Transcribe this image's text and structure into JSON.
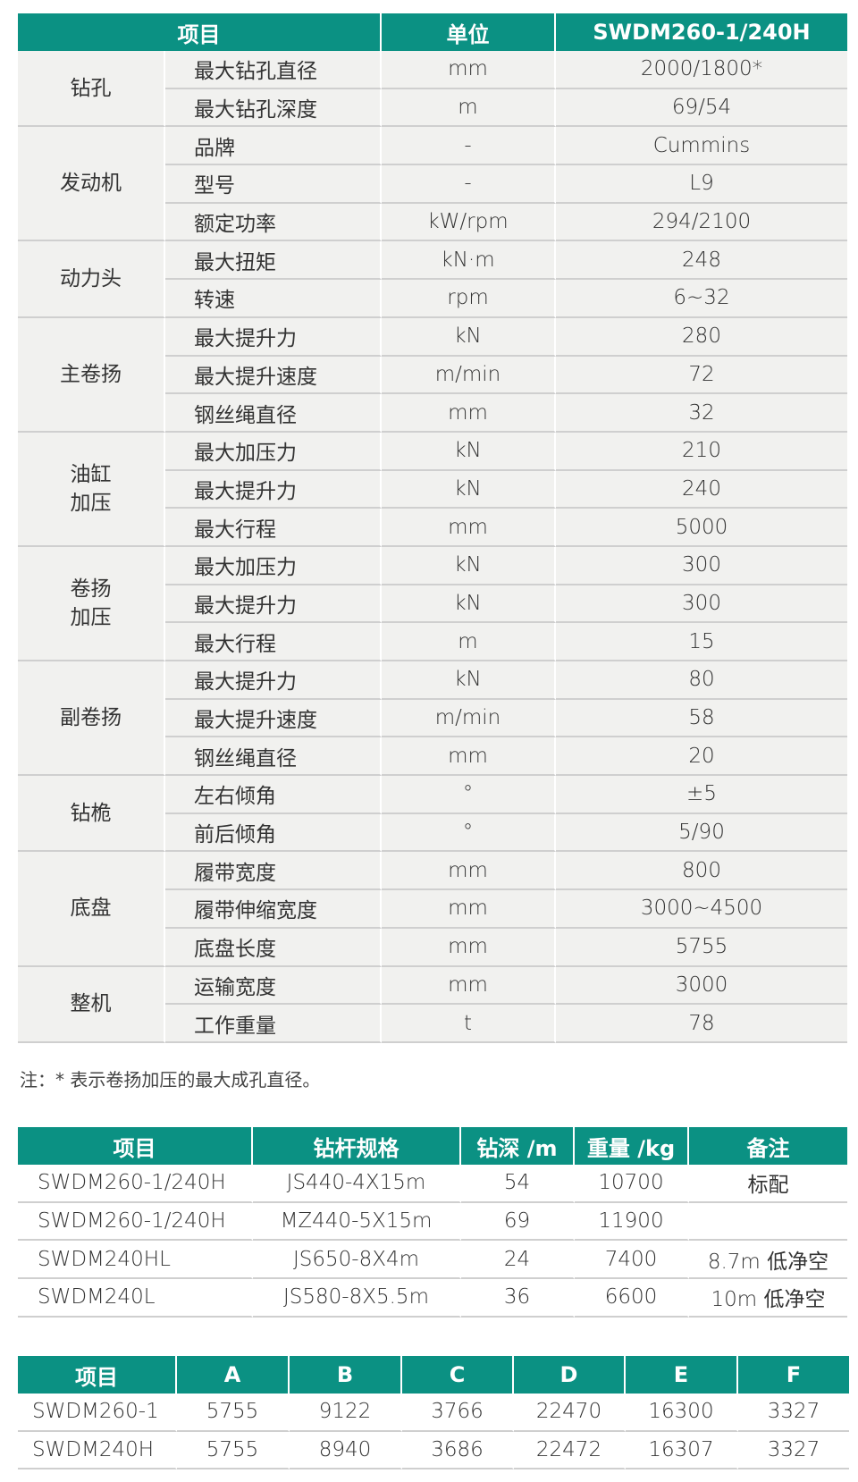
{
  "spec_table": {
    "headers": [
      "项目",
      "单位",
      "SWDM260-1/240H"
    ],
    "groups": [
      {
        "name": "钻孔",
        "rows": [
          [
            "最大钻孔直径",
            "mm",
            "2000/1800*"
          ],
          [
            "最大钻孔深度",
            "m",
            "69/54"
          ]
        ]
      },
      {
        "name": "发动机",
        "rows": [
          [
            "品牌",
            "-",
            "Cummins"
          ],
          [
            "型号",
            "-",
            "L9"
          ],
          [
            "额定功率",
            "kW/rpm",
            "294/2100"
          ]
        ]
      },
      {
        "name": "动力头",
        "rows": [
          [
            "最大扭矩",
            "kN·m",
            "248"
          ],
          [
            "转速",
            "rpm",
            "6~32"
          ]
        ]
      },
      {
        "name": "主卷扬",
        "rows": [
          [
            "最大提升力",
            "kN",
            "280"
          ],
          [
            "最大提升速度",
            "m/min",
            "72"
          ],
          [
            "钢丝绳直径",
            "mm",
            "32"
          ]
        ]
      },
      {
        "name": "油缸\n加压",
        "rows": [
          [
            "最大加压力",
            "kN",
            "210"
          ],
          [
            "最大提升力",
            "kN",
            "240"
          ],
          [
            "最大行程",
            "mm",
            "5000"
          ]
        ]
      },
      {
        "name": "卷扬\n加压",
        "rows": [
          [
            "最大加压力",
            "kN",
            "300"
          ],
          [
            "最大提升力",
            "kN",
            "300"
          ],
          [
            "最大行程",
            "m",
            "15"
          ]
        ]
      },
      {
        "name": "副卷扬",
        "rows": [
          [
            "最大提升力",
            "kN",
            "80"
          ],
          [
            "最大提升速度",
            "m/min",
            "58"
          ],
          [
            "钢丝绳直径",
            "mm",
            "20"
          ]
        ]
      },
      {
        "name": "钻桅",
        "rows": [
          [
            "左右倾角",
            "°",
            "±5"
          ],
          [
            "前后倾角",
            "°",
            "5/90"
          ]
        ]
      },
      {
        "name": "底盘",
        "rows": [
          [
            "履带宽度",
            "mm",
            "800"
          ],
          [
            "履带伸缩宽度",
            "mm",
            "3000~4500"
          ],
          [
            "底盘长度",
            "mm",
            "5755"
          ]
        ]
      },
      {
        "name": "整机",
        "rows": [
          [
            "运输宽度",
            "mm",
            "3000"
          ],
          [
            "工作重量",
            "t",
            "78"
          ]
        ]
      }
    ]
  },
  "note": "注：* 表示卷扬加压的最大成孔直径。",
  "rod_table": {
    "headers": [
      "项目",
      "钻杆规格",
      "钻深 /m",
      "重量 /kg",
      "备注"
    ],
    "rows": [
      [
        "SWDM260-1/240H",
        "JS440-4X15m",
        "54",
        "10700",
        "标配"
      ],
      [
        "SWDM260-1/240H",
        "MZ440-5X15m",
        "69",
        "11900",
        ""
      ],
      [
        "SWDM240HL",
        "JS650-8X4m",
        "24",
        "7400",
        "8.7m 低净空"
      ],
      [
        "SWDM240L",
        "JS580-8X5.5m",
        "36",
        "6600",
        "10m 低净空"
      ]
    ]
  },
  "dim_table": {
    "headers": [
      "项目",
      "A",
      "B",
      "C",
      "D",
      "E",
      "F"
    ],
    "rows": [
      [
        "SWDM260-1",
        "5755",
        "9122",
        "3766",
        "22470",
        "16300",
        "3327"
      ],
      [
        "SWDM240H",
        "5755",
        "8940",
        "3686",
        "22472",
        "16307",
        "3327"
      ]
    ]
  },
  "colors": {
    "header_bg": "#0b9183",
    "row_bg": "#f1f1ef",
    "divider": "#cfcfcf"
  }
}
